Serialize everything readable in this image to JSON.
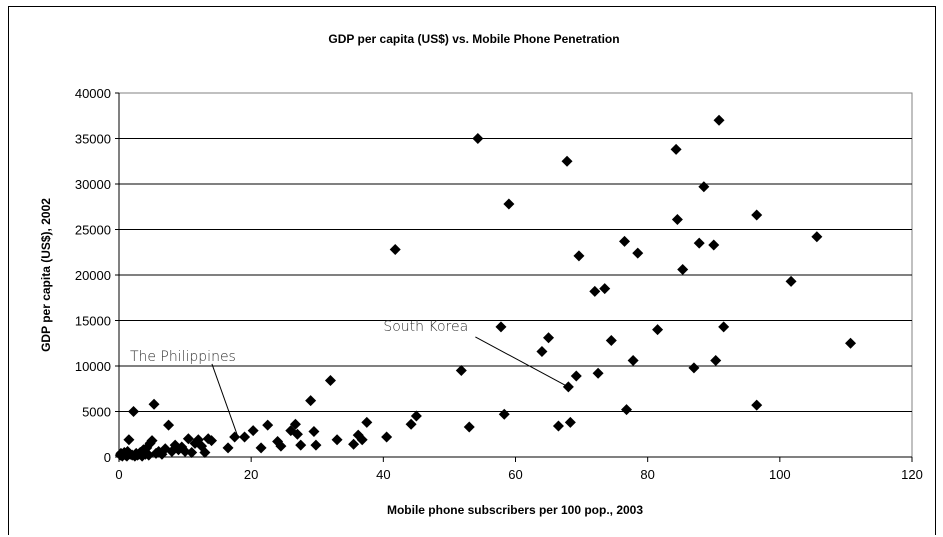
{
  "chart_data": {
    "type": "scatter",
    "title": "GDP per capita (US$) vs. Mobile Phone Penetration",
    "xlabel": "Mobile phone subscribers per 100 pop., 2003",
    "ylabel": "GDP per capita (US$), 2002",
    "xlim": [
      0,
      120
    ],
    "ylim": [
      0,
      40000
    ],
    "xticks": [
      "0",
      "20",
      "40",
      "60",
      "80",
      "100",
      "120"
    ],
    "yticks": [
      "0",
      "5000",
      "10000",
      "15000",
      "20000",
      "25000",
      "30000",
      "35000",
      "40000"
    ],
    "grid": "horizontal",
    "marker": "diamond",
    "marker_color": "#000000",
    "annotations": [
      {
        "text": "South Korea",
        "x": 68,
        "y": 7700
      },
      {
        "text": "The Philippines",
        "x": 18,
        "y": 2200
      }
    ],
    "points": [
      [
        0.2,
        200
      ],
      [
        0.3,
        400
      ],
      [
        0.5,
        100
      ],
      [
        0.6,
        300
      ],
      [
        0.8,
        500
      ],
      [
        1,
        200
      ],
      [
        1.2,
        100
      ],
      [
        1.3,
        600
      ],
      [
        1.5,
        1900
      ],
      [
        1.7,
        300
      ],
      [
        2,
        200
      ],
      [
        2.2,
        5000
      ],
      [
        2.4,
        100
      ],
      [
        2.6,
        400
      ],
      [
        2.8,
        200
      ],
      [
        3,
        300
      ],
      [
        3.2,
        500
      ],
      [
        3.5,
        100
      ],
      [
        3.7,
        800
      ],
      [
        4,
        300
      ],
      [
        4.2,
        1000
      ],
      [
        4.5,
        200
      ],
      [
        4.7,
        1500
      ],
      [
        5,
        1800
      ],
      [
        5.3,
        5800
      ],
      [
        5.6,
        400
      ],
      [
        6,
        600
      ],
      [
        6.5,
        300
      ],
      [
        7,
        900
      ],
      [
        7.5,
        3500
      ],
      [
        8,
        600
      ],
      [
        8.5,
        1300
      ],
      [
        9,
        800
      ],
      [
        9.5,
        1100
      ],
      [
        10,
        600
      ],
      [
        10.5,
        2000
      ],
      [
        11,
        500
      ],
      [
        11.5,
        1500
      ],
      [
        12,
        1900
      ],
      [
        12.5,
        1200
      ],
      [
        13,
        500
      ],
      [
        13.5,
        2000
      ],
      [
        14,
        1800
      ],
      [
        16.5,
        1000
      ],
      [
        17.5,
        2200
      ],
      [
        19,
        2200
      ],
      [
        20.3,
        2900
      ],
      [
        21.5,
        1000
      ],
      [
        22.5,
        3500
      ],
      [
        24,
        1700
      ],
      [
        24.5,
        1200
      ],
      [
        26,
        2900
      ],
      [
        26.7,
        3600
      ],
      [
        27,
        2500
      ],
      [
        27.5,
        1300
      ],
      [
        29,
        6200
      ],
      [
        29.5,
        2800
      ],
      [
        29.8,
        1300
      ],
      [
        32,
        8400
      ],
      [
        33,
        1900
      ],
      [
        35.5,
        1400
      ],
      [
        36.2,
        2400
      ],
      [
        36.8,
        1900
      ],
      [
        37.5,
        3800
      ],
      [
        40.5,
        2200
      ],
      [
        41.8,
        22800
      ],
      [
        44.2,
        3600
      ],
      [
        45,
        4500
      ],
      [
        51.8,
        9500
      ],
      [
        53,
        3300
      ],
      [
        54.3,
        35000
      ],
      [
        57.8,
        14300
      ],
      [
        58.3,
        4700
      ],
      [
        59,
        27800
      ],
      [
        64,
        11600
      ],
      [
        65,
        13100
      ],
      [
        66.5,
        3400
      ],
      [
        67.8,
        32500
      ],
      [
        68,
        7700
      ],
      [
        68.3,
        3800
      ],
      [
        69.2,
        8900
      ],
      [
        69.6,
        22100
      ],
      [
        72,
        18200
      ],
      [
        72.5,
        9200
      ],
      [
        73.5,
        18500
      ],
      [
        74.5,
        12800
      ],
      [
        76.5,
        23700
      ],
      [
        76.8,
        5200
      ],
      [
        77.8,
        10600
      ],
      [
        78.5,
        22400
      ],
      [
        81.5,
        14000
      ],
      [
        84.3,
        33800
      ],
      [
        84.5,
        26100
      ],
      [
        85.3,
        20600
      ],
      [
        87,
        9800
      ],
      [
        87.8,
        23500
      ],
      [
        88.5,
        29700
      ],
      [
        90,
        23300
      ],
      [
        90.3,
        10600
      ],
      [
        90.8,
        37000
      ],
      [
        91.5,
        14300
      ],
      [
        96.5,
        26600
      ],
      [
        96.5,
        5700
      ],
      [
        101.7,
        19300
      ],
      [
        105.6,
        24200
      ],
      [
        110.7,
        12500
      ]
    ]
  }
}
